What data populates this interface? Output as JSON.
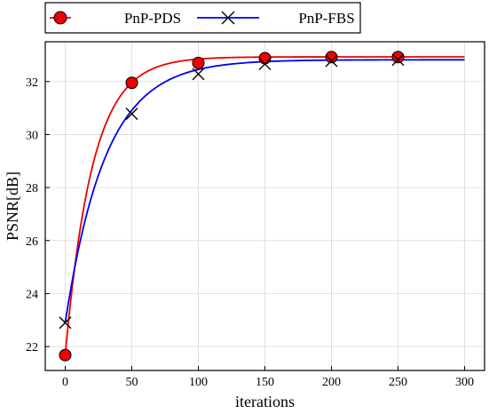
{
  "chart_data": {
    "type": "line",
    "xlabel": "iterations",
    "ylabel": "PSNR[dB]",
    "xlim": [
      -15,
      315
    ],
    "ylim": [
      21.1,
      33.5
    ],
    "xticks": [
      0,
      50,
      100,
      150,
      200,
      250,
      300
    ],
    "yticks": [
      22,
      24,
      26,
      28,
      30,
      32
    ],
    "grid": true,
    "legend": "top-left, outside plot",
    "series": [
      {
        "name": "PnP-PDS",
        "color": "#ee0000",
        "marker": "circle",
        "marker_fill": "#ee0000",
        "marker_x": [
          0,
          50,
          100,
          150,
          200,
          250
        ],
        "marker_y": [
          21.68,
          31.95,
          32.7,
          32.88,
          32.92,
          32.92
        ],
        "curve": {
          "start": 21.68,
          "plateau": 32.93,
          "rate": 0.049
        }
      },
      {
        "name": "PnP-FBS",
        "color": "#0000ee",
        "marker": "x",
        "marker_fill": "#000000",
        "marker_x": [
          0,
          50,
          100,
          150,
          200,
          250
        ],
        "marker_y": [
          22.9,
          30.78,
          32.28,
          32.66,
          32.78,
          32.82
        ],
        "curve": {
          "start": 22.9,
          "plateau": 32.82,
          "rate": 0.033
        }
      }
    ]
  }
}
